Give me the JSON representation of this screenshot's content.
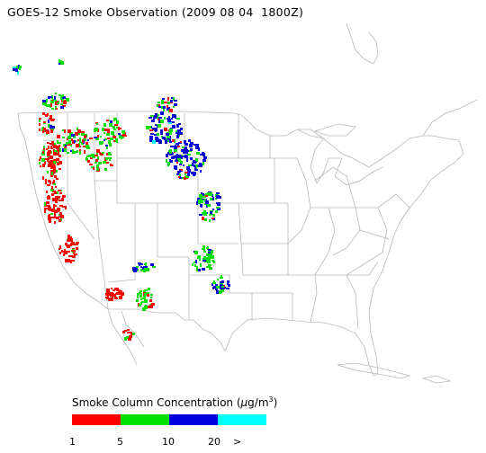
{
  "title": "GOES-12 Smoke Observation (2009 08 04  1800Z)",
  "legend": {
    "title_prefix": "Smoke Column Concentration (",
    "unit_mu": "μ",
    "unit_rest": "g/m",
    "unit_sup": "3",
    "title_suffix": ")",
    "categories": [
      {
        "range": "1-5",
        "color": "#ff0000"
      },
      {
        "range": "5-10",
        "color": "#00e000"
      },
      {
        "range": "10-20",
        "color": "#0000dd"
      },
      {
        "range": ">20",
        "color": "#00ffff"
      }
    ],
    "tick_labels": [
      "1",
      "5",
      "10",
      "20",
      ">"
    ]
  },
  "colors": {
    "land_outline": "#b8b8b8",
    "background": "#ffffff"
  }
}
